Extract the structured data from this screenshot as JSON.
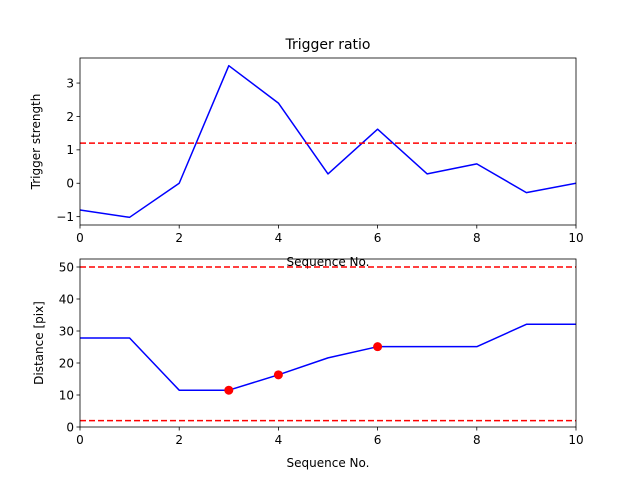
{
  "chart_data": [
    {
      "type": "line",
      "title": "Trigger ratio",
      "xlabel": "Sequence No.",
      "ylabel": "Trigger strength",
      "xlim": [
        0,
        10
      ],
      "ylim": [
        -1.25,
        3.75
      ],
      "xticks": [
        0,
        2,
        4,
        6,
        8,
        10
      ],
      "yticks": [
        -1,
        0,
        1,
        2,
        3
      ],
      "series": [
        {
          "style": "solid",
          "color": "#0000ff",
          "x": [
            0,
            1,
            2,
            3,
            4,
            5,
            6,
            7,
            8,
            9,
            10
          ],
          "values": [
            -0.8,
            -1.02,
            0.0,
            3.52,
            2.4,
            0.28,
            1.62,
            0.28,
            0.58,
            -0.28,
            0.0
          ]
        },
        {
          "style": "dashed",
          "color": "#ff0000",
          "x": [
            0,
            10
          ],
          "values": [
            1.2,
            1.2
          ]
        }
      ],
      "grid": false
    },
    {
      "type": "line",
      "title": "",
      "xlabel": "Sequence No.",
      "ylabel": "Distance [pix]",
      "xlim": [
        0,
        10
      ],
      "ylim": [
        0,
        52.5
      ],
      "xticks": [
        0,
        2,
        4,
        6,
        8,
        10
      ],
      "yticks": [
        0,
        10,
        20,
        30,
        40,
        50
      ],
      "series": [
        {
          "style": "solid",
          "color": "#0000ff",
          "x": [
            0,
            1,
            2,
            3,
            4,
            5,
            6,
            7,
            8,
            9,
            10
          ],
          "values": [
            27.8,
            27.8,
            11.5,
            11.5,
            16.3,
            21.6,
            25.1,
            25.1,
            25.1,
            32.1,
            32.1
          ]
        },
        {
          "style": "markers",
          "color": "#ff0000",
          "x": [
            3,
            4,
            6
          ],
          "values": [
            11.5,
            16.3,
            25.1
          ]
        },
        {
          "style": "dashed",
          "color": "#ff0000",
          "x": [
            0,
            10
          ],
          "values": [
            50,
            50
          ]
        },
        {
          "style": "dashed",
          "color": "#ff0000",
          "x": [
            0,
            10
          ],
          "values": [
            2,
            2
          ]
        }
      ],
      "grid": false
    }
  ]
}
